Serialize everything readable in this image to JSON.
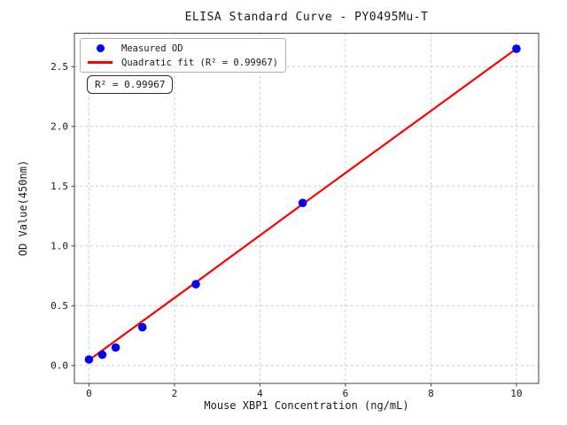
{
  "chart_data": {
    "type": "scatter",
    "title": "ELISA Standard Curve - PY0495Mu-T",
    "xlabel": "Mouse XBP1 Concentration (ng/mL)",
    "ylabel": "OD Value(450nm)",
    "xlim": [
      -0.34,
      10.52
    ],
    "ylim": [
      -0.15,
      2.78
    ],
    "xticks": [
      0,
      2,
      4,
      6,
      8,
      10
    ],
    "xtick_labels": [
      "0",
      "2",
      "4",
      "6",
      "8",
      "10"
    ],
    "yticks": [
      0,
      0.5,
      1.0,
      1.5,
      2.0,
      2.5
    ],
    "ytick_labels": [
      "0.0",
      "0.5",
      "1.0",
      "1.5",
      "2.0",
      "2.5"
    ],
    "grid": true,
    "grid_style": "dashed",
    "colors": {
      "scatter": "#0000ff",
      "fit_line": "#ff0000",
      "grid": "#cccccc",
      "spine": "#404040",
      "text": "#1a1a1a"
    },
    "legend": {
      "position": "upper left",
      "entries": [
        {
          "label": "Measured OD",
          "marker": "dot",
          "color": "#0000ff"
        },
        {
          "label": "Quadratic fit (R² = 0.99967)",
          "marker": "line",
          "color": "#ff0000"
        }
      ]
    },
    "annotation": {
      "text": "R² = 0.99967"
    },
    "series": [
      {
        "name": "Measured OD",
        "type": "scatter",
        "color": "#0000ff",
        "x": [
          0,
          0.3125,
          0.625,
          1.25,
          2.5,
          5,
          10
        ],
        "y": [
          0.05,
          0.09,
          0.15,
          0.32,
          0.68,
          1.36,
          2.65
        ]
      },
      {
        "name": "Quadratic fit",
        "type": "line",
        "color": "#ff0000",
        "x": [
          0,
          2.5,
          5,
          7.5,
          10
        ],
        "y": [
          0.045,
          0.695,
          1.35,
          2.0,
          2.65
        ]
      }
    ]
  }
}
